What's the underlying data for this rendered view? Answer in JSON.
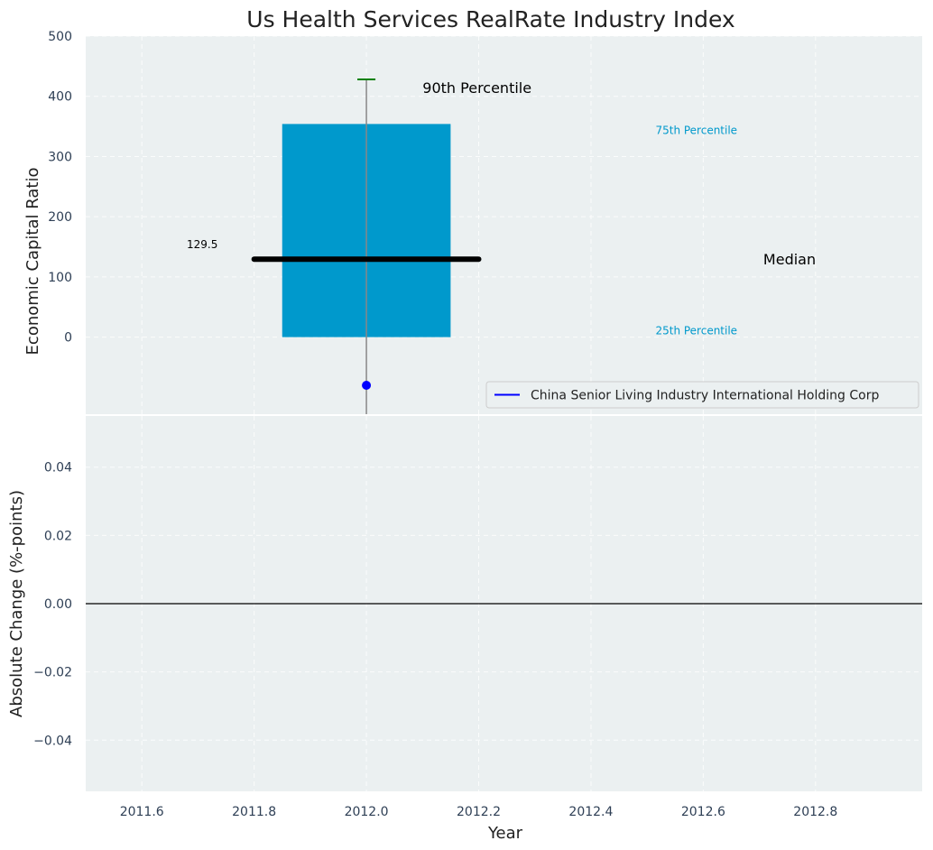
{
  "chart_data": {
    "type": "box",
    "title": "Us Health Services RealRate Industry Index",
    "xlabel": "Year",
    "x_ticks": [
      2011.6,
      2011.8,
      2012.0,
      2012.2,
      2012.4,
      2012.6,
      2012.8
    ],
    "x_tick_labels": [
      "2011.6",
      "2011.8",
      "2012.0",
      "2012.2",
      "2012.4",
      "2012.6",
      "2012.8"
    ],
    "xlim": [
      2011.5,
      2012.99
    ],
    "top_panel": {
      "ylabel": "Economic Capital Ratio",
      "ylim": [
        -128,
        500
      ],
      "y_ticks": [
        0,
        100,
        200,
        300,
        400,
        500
      ],
      "y_tick_labels": [
        "0",
        "100",
        "200",
        "300",
        "400",
        "500"
      ],
      "grid": true,
      "box": {
        "x": 2012.0,
        "x_left": 2011.85,
        "x_right": 2012.15,
        "p25": 0,
        "p75": 354,
        "p90": 428,
        "median": 129.5,
        "median_x_left": 2011.8,
        "median_x_right": 2012.2,
        "whisker_low": -128,
        "color": "#0099cc"
      },
      "company_point": {
        "x": 2012.0,
        "y": -80,
        "color": "#0000ff"
      },
      "annotations": {
        "p90_label": "90th Percentile",
        "p75_label": "75th Percentile",
        "median_label": "Median",
        "p25_label": "25th Percentile",
        "median_value_label": "129.5"
      },
      "legend": {
        "position": "lower-right",
        "entries": [
          {
            "label": "China Senior Living Industry International Holding Corp",
            "color": "#0000ff"
          }
        ]
      }
    },
    "bottom_panel": {
      "ylabel": "Absolute Change (%-points)",
      "ylim": [
        -0.055,
        0.055
      ],
      "y_ticks": [
        -0.04,
        -0.02,
        0.0,
        0.02,
        0.04
      ],
      "y_tick_labels": [
        "−0.04",
        "−0.02",
        "0.00",
        "0.02",
        "0.04"
      ],
      "grid": true,
      "zero_line": true
    }
  }
}
